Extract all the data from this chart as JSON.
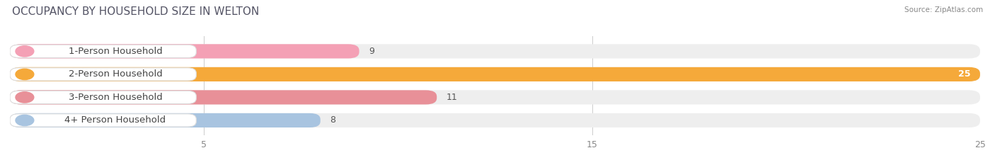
{
  "title": "OCCUPANCY BY HOUSEHOLD SIZE IN WELTON",
  "source": "Source: ZipAtlas.com",
  "categories": [
    "1-Person Household",
    "2-Person Household",
    "3-Person Household",
    "4+ Person Household"
  ],
  "values": [
    9,
    25,
    11,
    8
  ],
  "bar_colors": [
    "#f4a0b5",
    "#f5a93a",
    "#e89098",
    "#a8c4e0"
  ],
  "bar_bg_color": "#eeeeee",
  "xlim": [
    0,
    25
  ],
  "xticks": [
    5,
    15,
    25
  ],
  "title_fontsize": 11,
  "label_fontsize": 9.5,
  "value_fontsize": 9,
  "bar_height": 0.62
}
